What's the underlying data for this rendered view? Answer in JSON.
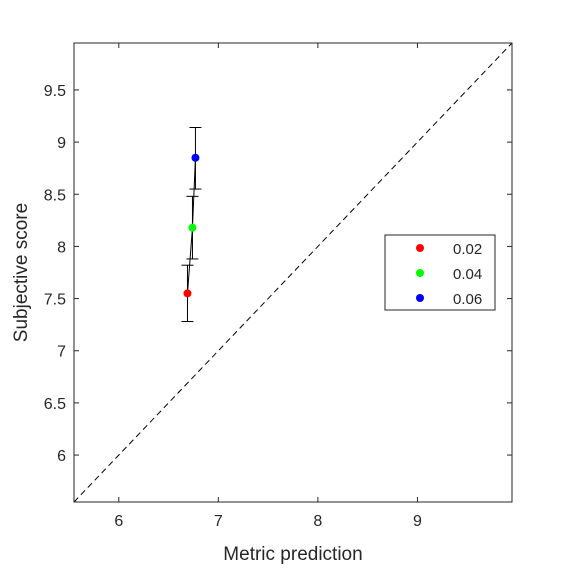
{
  "chart_data": {
    "type": "scatter",
    "title": "",
    "xlabel": "Metric prediction",
    "ylabel": "Subjective score",
    "xlim": [
      5.55,
      9.95
    ],
    "ylim": [
      5.55,
      9.95
    ],
    "xticks": [
      6,
      7,
      8,
      9
    ],
    "yticks": [
      6,
      6.5,
      7,
      7.5,
      8,
      8.5,
      9,
      9.5
    ],
    "xtick_labels": [
      "6",
      "7",
      "8",
      "9"
    ],
    "ytick_labels": [
      "6",
      "6.5",
      "7",
      "7.5",
      "8",
      "8.5",
      "9",
      "9.5"
    ],
    "grid": false,
    "legend_position": "right",
    "reference_line": "dashed diagonal y = x",
    "connecting_line": true,
    "series": [
      {
        "name": "0.02",
        "color": "#ff0000",
        "x": 6.69,
        "y": 7.55,
        "err_low": 7.28,
        "err_high": 7.82
      },
      {
        "name": "0.04",
        "color": "#00ff00",
        "x": 6.74,
        "y": 8.18,
        "err_low": 7.88,
        "err_high": 8.48
      },
      {
        "name": "0.06",
        "color": "#0000ff",
        "x": 6.77,
        "y": 8.85,
        "err_low": 8.55,
        "err_high": 9.14
      }
    ]
  }
}
